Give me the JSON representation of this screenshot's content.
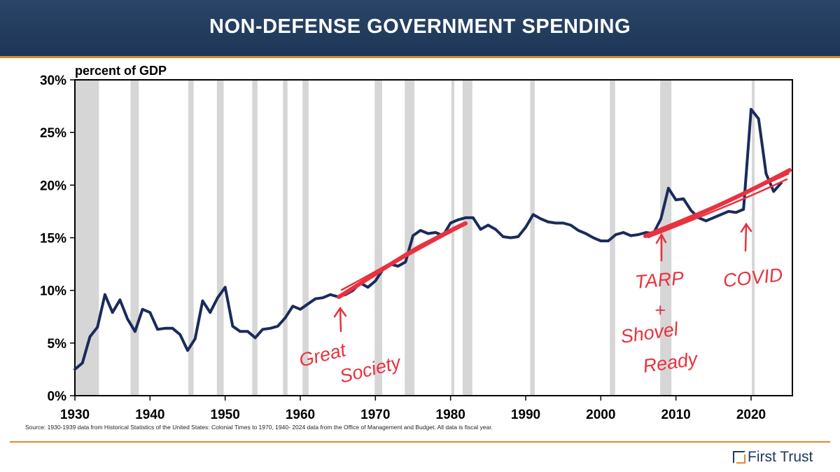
{
  "header": {
    "title": "NON-DEFENSE GOVERNMENT SPENDING"
  },
  "source_note": "Source: 1930-1939 data from Historical Statistics of the United States: Colonial Times to 1970, 1940- 2024 data from the Office of Management and Budget. All data is fiscal year.",
  "logo": {
    "text": "First Trust",
    "icon": "first-trust-logo-icon"
  },
  "colors": {
    "header": "#1e3656",
    "accent": "#e08a2c",
    "line": "#1a2b5c",
    "annotation": "#e8323f",
    "recession": "#d6d6d6"
  },
  "chart_data": {
    "type": "line",
    "title": "NON-DEFENSE GOVERNMENT SPENDING",
    "ylabel": "percent of GDP",
    "xlabel": "",
    "xlim": [
      1930,
      2025.5
    ],
    "ylim": [
      0,
      30
    ],
    "x_ticks": [
      "1930",
      "1940",
      "1950",
      "1960",
      "1970",
      "1980",
      "1990",
      "2000",
      "2010",
      "2020"
    ],
    "y_ticks": [
      "0%",
      "5%",
      "10%",
      "15%",
      "20%",
      "25%",
      "30%"
    ],
    "grid": false,
    "series": [
      {
        "x": [
          1930,
          1931,
          1932,
          1933,
          1934,
          1935,
          1936,
          1937,
          1938,
          1939,
          1940,
          1941,
          1942,
          1943,
          1944,
          1945,
          1946,
          1947,
          1948,
          1949,
          1950,
          1951,
          1952,
          1953,
          1954,
          1955,
          1956,
          1957,
          1958,
          1959,
          1960,
          1961,
          1962,
          1963,
          1964,
          1965,
          1966,
          1967,
          1968,
          1969,
          1970,
          1971,
          1972,
          1973,
          1974,
          1975,
          1976,
          1977,
          1978,
          1979,
          1980,
          1981,
          1982,
          1983,
          1984,
          1985,
          1986,
          1987,
          1988,
          1989,
          1990,
          1991,
          1992,
          1993,
          1994,
          1995,
          1996,
          1997,
          1998,
          1999,
          2000,
          2001,
          2002,
          2003,
          2004,
          2005,
          2006,
          2007,
          2008,
          2009,
          2010,
          2011,
          2012,
          2013,
          2014,
          2015,
          2016,
          2017,
          2018,
          2019,
          2020,
          2021,
          2022,
          2023,
          2024
        ],
        "values": [
          2.5,
          3.1,
          5.6,
          6.5,
          9.6,
          7.9,
          9.1,
          7.3,
          6.1,
          8.2,
          7.9,
          6.3,
          6.4,
          6.4,
          5.8,
          4.3,
          5.4,
          9.0,
          7.9,
          9.3,
          10.3,
          6.6,
          6.1,
          6.1,
          5.5,
          6.3,
          6.4,
          6.6,
          7.4,
          8.5,
          8.2,
          8.7,
          9.2,
          9.3,
          9.6,
          9.4,
          9.6,
          10.0,
          10.7,
          10.3,
          10.9,
          12.0,
          12.5,
          12.3,
          12.7,
          15.2,
          15.7,
          15.4,
          15.5,
          15.2,
          16.4,
          16.7,
          16.9,
          16.9,
          15.8,
          16.2,
          15.8,
          15.1,
          15.0,
          15.1,
          16.0,
          17.2,
          16.8,
          16.5,
          16.4,
          16.4,
          16.2,
          15.7,
          15.4,
          15.0,
          14.7,
          14.7,
          15.3,
          15.5,
          15.2,
          15.3,
          15.5,
          15.4,
          16.8,
          19.7,
          18.6,
          18.7,
          17.6,
          16.9,
          16.6,
          16.9,
          17.2,
          17.5,
          17.4,
          17.7,
          27.2,
          26.3,
          21.1,
          19.4,
          20.2
        ]
      }
    ],
    "recession_bands": [
      [
        1929.8,
        1933.2
      ],
      [
        1937.4,
        1938.5
      ],
      [
        1945.1,
        1945.8
      ],
      [
        1948.9,
        1949.8
      ],
      [
        1953.6,
        1954.3
      ],
      [
        1957.7,
        1958.3
      ],
      [
        1960.3,
        1961.1
      ],
      [
        1969.9,
        1970.9
      ],
      [
        1973.9,
        1975.2
      ],
      [
        1980.1,
        1980.5
      ],
      [
        1981.6,
        1982.9
      ],
      [
        1990.6,
        1991.2
      ],
      [
        2001.2,
        2001.9
      ],
      [
        2007.9,
        2009.4
      ],
      [
        2020.1,
        2020.3
      ]
    ],
    "annotations": [
      "Great Society",
      "TARP + Shovel Ready",
      "COVID"
    ]
  }
}
